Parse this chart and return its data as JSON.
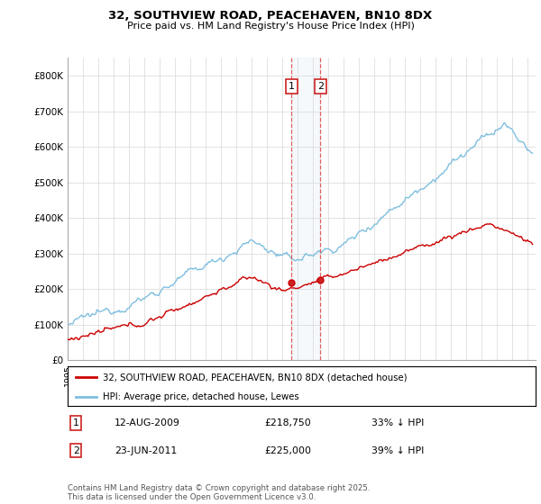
{
  "title": "32, SOUTHVIEW ROAD, PEACEHAVEN, BN10 8DX",
  "subtitle": "Price paid vs. HM Land Registry's House Price Index (HPI)",
  "legend_line1": "32, SOUTHVIEW ROAD, PEACEHAVEN, BN10 8DX (detached house)",
  "legend_line2": "HPI: Average price, detached house, Lewes",
  "annotation1_date": "12-AUG-2009",
  "annotation1_price": "£218,750",
  "annotation1_hpi": "33% ↓ HPI",
  "annotation2_date": "23-JUN-2011",
  "annotation2_price": "£225,000",
  "annotation2_hpi": "39% ↓ HPI",
  "footer": "Contains HM Land Registry data © Crown copyright and database right 2025.\nThis data is licensed under the Open Government Licence v3.0.",
  "red_color": "#cc0000",
  "blue_color": "#7fbfdf",
  "vline1_x": 2009.6,
  "vline2_x": 2011.47,
  "sale1_price": 218750,
  "sale2_price": 225000,
  "ylim": [
    0,
    850000
  ],
  "xlim_start": 1995.0,
  "xlim_end": 2025.5
}
